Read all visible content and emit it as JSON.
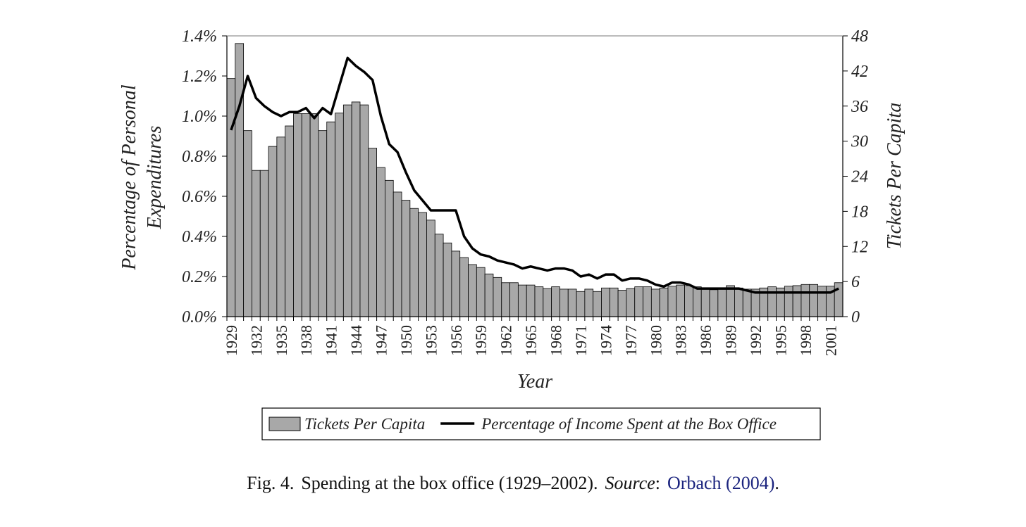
{
  "chart_data": {
    "type": "combo",
    "xlabel": "Year",
    "ylabel": [
      "Percentage of Personal",
      "Expenditures"
    ],
    "y2label": "Tickets Per Capita",
    "categories": [
      1929,
      null,
      null,
      1932,
      null,
      null,
      1935,
      null,
      null,
      1938,
      null,
      null,
      1941,
      null,
      null,
      1944,
      null,
      null,
      1947,
      null,
      null,
      1950,
      null,
      null,
      1953,
      null,
      null,
      1956,
      null,
      null,
      1959,
      null,
      null,
      1962,
      null,
      null,
      1965,
      null,
      null,
      1968,
      null,
      null,
      1971,
      null,
      null,
      1974,
      null,
      null,
      1977,
      null,
      null,
      1980,
      null,
      null,
      1983,
      null,
      null,
      1986,
      null,
      null,
      1989,
      null,
      null,
      1992,
      null,
      null,
      1995,
      null,
      null,
      1998,
      null,
      null,
      2001,
      null
    ],
    "ylim": [
      0,
      1.4
    ],
    "yticks": [
      {
        "value": 0,
        "label": "0.0%"
      },
      {
        "value": 0.2,
        "label": "0.2%"
      },
      {
        "value": 0.4,
        "label": "0.4%"
      },
      {
        "value": 0.6,
        "label": "0.6%"
      },
      {
        "value": 0.8,
        "label": "0.8%"
      },
      {
        "value": 1.0,
        "label": "1.0%"
      },
      {
        "value": 1.2,
        "label": "1.2%"
      },
      {
        "value": 1.4,
        "label": "1.4%"
      }
    ],
    "y2lim": [
      0,
      48
    ],
    "y2ticks": [
      0,
      6,
      12,
      18,
      24,
      30,
      36,
      42,
      48
    ],
    "series": [
      {
        "name": "Tickets Per Capita",
        "type": "bar",
        "axis": "y2",
        "color": "#a8a8a8",
        "values": [
          40.7,
          46.7,
          31.8,
          25.0,
          25.0,
          29.1,
          30.7,
          32.6,
          34.7,
          34.7,
          34.7,
          31.8,
          33.3,
          34.8,
          36.2,
          36.7,
          36.2,
          28.8,
          25.5,
          23.3,
          21.3,
          19.9,
          18.5,
          17.8,
          16.5,
          14.1,
          12.6,
          11.2,
          10.1,
          8.9,
          8.4,
          7.3,
          6.7,
          5.8,
          5.8,
          5.4,
          5.4,
          5.1,
          4.8,
          5.1,
          4.7,
          4.7,
          4.3,
          4.7,
          4.3,
          4.9,
          4.9,
          4.5,
          4.8,
          5.1,
          5.1,
          4.7,
          4.9,
          5.2,
          5.4,
          5.3,
          5.1,
          4.7,
          4.6,
          4.7,
          5.3,
          4.9,
          4.7,
          4.7,
          4.9,
          5.1,
          4.9,
          5.2,
          5.3,
          5.5,
          5.5,
          5.2,
          5.2,
          5.8
        ]
      },
      {
        "name": "Percentage of Income Spent at the Box Office",
        "type": "line",
        "color": "#000000",
        "values": [
          0.93,
          1.05,
          1.2,
          1.09,
          1.05,
          1.02,
          1.0,
          1.02,
          1.02,
          1.04,
          0.99,
          1.04,
          1.01,
          1.15,
          1.29,
          1.25,
          1.22,
          1.18,
          1.0,
          0.86,
          0.82,
          0.72,
          0.63,
          0.58,
          0.53,
          0.53,
          0.53,
          0.53,
          0.4,
          0.34,
          0.31,
          0.3,
          0.28,
          0.27,
          0.26,
          0.24,
          0.25,
          0.24,
          0.23,
          0.24,
          0.24,
          0.23,
          0.2,
          0.21,
          0.19,
          0.21,
          0.21,
          0.18,
          0.19,
          0.19,
          0.18,
          0.16,
          0.15,
          0.17,
          0.17,
          0.16,
          0.14,
          0.14,
          0.14,
          0.14,
          0.14,
          0.14,
          0.13,
          0.12,
          0.12,
          0.12,
          0.12,
          0.12,
          0.12,
          0.12,
          0.12,
          0.12,
          0.12,
          0.14
        ]
      }
    ]
  },
  "caption": {
    "fig": "Fig. 4.",
    "text": "Spending at the box office (1929–2002).",
    "source_label": "Source",
    "source_sep": ":",
    "source": "Orbach (2004)",
    "end": "."
  }
}
